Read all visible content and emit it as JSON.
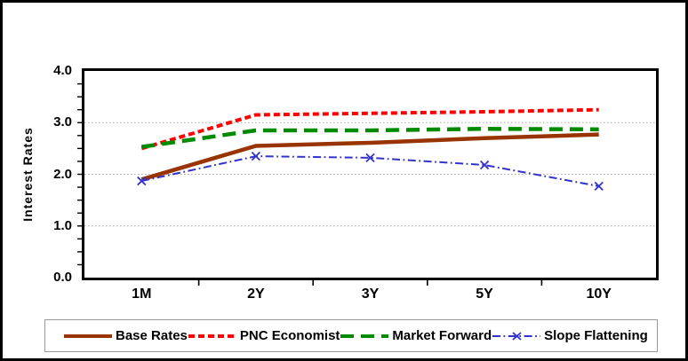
{
  "chart_data": {
    "type": "line",
    "title": "",
    "xlabel": "",
    "ylabel": "Interest Rates",
    "categories": [
      "1M",
      "2Y",
      "3Y",
      "5Y",
      "10Y"
    ],
    "ylim": [
      0.0,
      4.0
    ],
    "yticks": [
      {
        "label": "4.0",
        "value": 4.0
      },
      {
        "label": "3.0",
        "value": 3.0
      },
      {
        "label": "2.0",
        "value": 2.0
      },
      {
        "label": "1.0",
        "value": 1.0
      },
      {
        "label": "0.0",
        "value": 0.0
      }
    ],
    "minor_tick_step": 0.25,
    "grid_values": [
      1.0,
      2.0,
      3.0
    ],
    "grid_style": "horizontal-dotted-gray",
    "legend_position": "bottom",
    "series": [
      {
        "name": "Base Rates",
        "values": [
          1.9,
          2.55,
          2.61,
          2.7,
          2.77
        ],
        "color": "#993300",
        "style": "solid",
        "width": 4.5,
        "marker": "none"
      },
      {
        "name": "PNC Economist",
        "values": [
          2.5,
          3.15,
          3.18,
          3.21,
          3.25
        ],
        "color": "#FF0000",
        "style": "dash",
        "width": 4,
        "marker": "none"
      },
      {
        "name": "Market Forward",
        "values": [
          2.53,
          2.85,
          2.85,
          2.88,
          2.87
        ],
        "color": "#008A00",
        "style": "longdash",
        "width": 4.5,
        "marker": "none"
      },
      {
        "name": "Slope Flattening",
        "values": [
          1.87,
          2.35,
          2.32,
          2.18,
          1.77
        ],
        "color": "#3333CC",
        "style": "dashdot",
        "width": 2,
        "marker": "x"
      }
    ]
  }
}
